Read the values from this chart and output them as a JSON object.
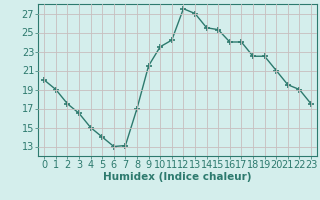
{
  "x": [
    0,
    1,
    2,
    3,
    4,
    5,
    6,
    7,
    8,
    9,
    10,
    11,
    12,
    13,
    14,
    15,
    16,
    17,
    18,
    19,
    20,
    21,
    22,
    23
  ],
  "y": [
    20.0,
    19.0,
    17.5,
    16.5,
    15.0,
    14.0,
    13.0,
    13.1,
    17.0,
    21.5,
    23.5,
    24.2,
    27.5,
    27.0,
    25.5,
    25.3,
    24.0,
    24.0,
    22.5,
    22.5,
    21.0,
    19.5,
    19.0,
    17.5
  ],
  "line_color": "#2d7a6e",
  "marker": "+",
  "marker_size": 4,
  "marker_lw": 1.2,
  "line_width": 1.0,
  "xlabel": "Humidex (Indice chaleur)",
  "ylim": [
    12,
    28
  ],
  "xlim": [
    -0.5,
    23.5
  ],
  "yticks": [
    13,
    15,
    17,
    19,
    21,
    23,
    25,
    27
  ],
  "xticks": [
    0,
    1,
    2,
    3,
    4,
    5,
    6,
    7,
    8,
    9,
    10,
    11,
    12,
    13,
    14,
    15,
    16,
    17,
    18,
    19,
    20,
    21,
    22,
    23
  ],
  "bg_color": "#d4eeec",
  "grid_color": "#c8bebe",
  "xlabel_fontsize": 7.5,
  "tick_fontsize": 7,
  "tick_color": "#2d7a6e",
  "spine_color": "#2d7a6e"
}
